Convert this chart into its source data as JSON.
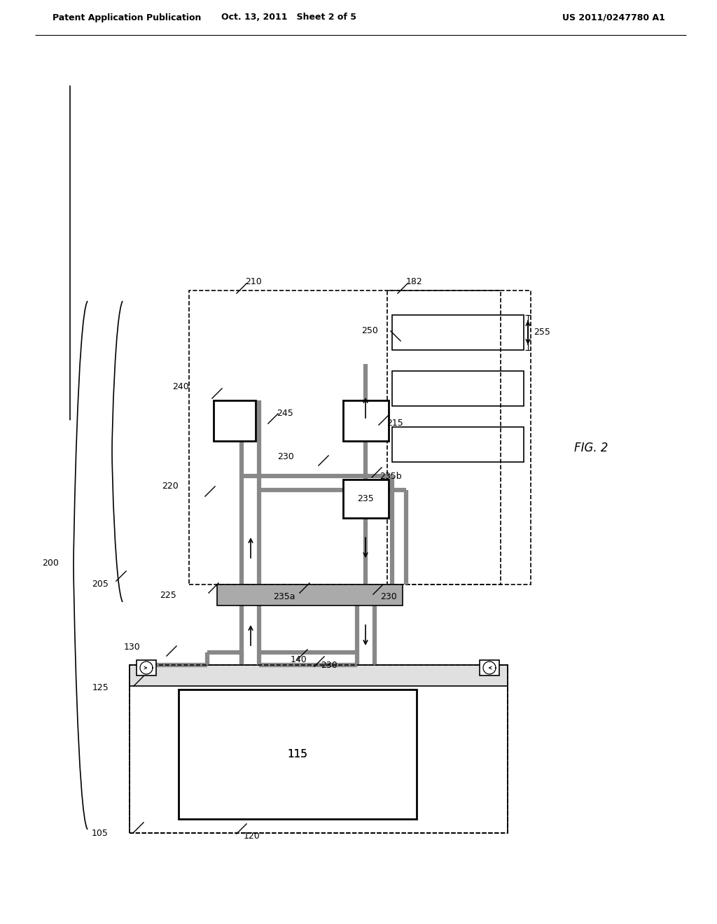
{
  "bg_color": "#ffffff",
  "line_color": "#000000",
  "header_left": "Patent Application Publication",
  "header_center": "Oct. 13, 2011   Sheet 2 of 5",
  "header_right": "US 2011/0247780 A1",
  "fig_label": "FIG. 2"
}
